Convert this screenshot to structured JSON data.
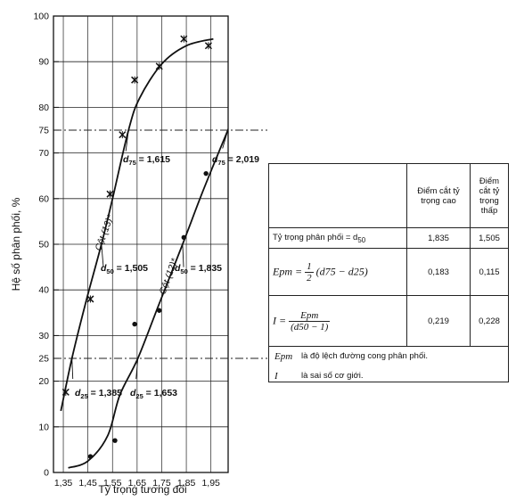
{
  "chart_data": {
    "type": "line",
    "title": "",
    "xlabel": "Tỷ trọng tương đối",
    "ylabel": "Hệ số phân phối, %",
    "xlim": [
      1.31,
      2.02
    ],
    "ylim": [
      0,
      100
    ],
    "x_ticks": [
      "1,35",
      "1,45",
      "1,55",
      "1,65",
      "1,75",
      "1,85",
      "1,95"
    ],
    "x_tick_values": [
      1.35,
      1.45,
      1.55,
      1.65,
      1.75,
      1.85,
      1.95
    ],
    "y_ticks": [
      "0",
      "10",
      "20",
      "25",
      "30",
      "40",
      "50",
      "60",
      "70",
      "75",
      "80",
      "90",
      "100"
    ],
    "y_tick_values": [
      0,
      10,
      20,
      25,
      30,
      40,
      50,
      60,
      70,
      75,
      80,
      90,
      100
    ],
    "grid": true,
    "series": [
      {
        "name": "Cột (13)*",
        "marker": "x",
        "points": [
          {
            "x": 1.36,
            "y": 17.6
          },
          {
            "x": 1.46,
            "y": 38
          },
          {
            "x": 1.54,
            "y": 61
          },
          {
            "x": 1.59,
            "y": 74
          },
          {
            "x": 1.64,
            "y": 86
          },
          {
            "x": 1.74,
            "y": 89
          },
          {
            "x": 1.84,
            "y": 95
          },
          {
            "x": 1.94,
            "y": 93.5
          }
        ],
        "curve": [
          {
            "x": 1.34,
            "y": 13.5
          },
          {
            "x": 1.385,
            "y": 25
          },
          {
            "x": 1.44,
            "y": 37
          },
          {
            "x": 1.505,
            "y": 50
          },
          {
            "x": 1.55,
            "y": 60
          },
          {
            "x": 1.615,
            "y": 75
          },
          {
            "x": 1.66,
            "y": 82
          },
          {
            "x": 1.75,
            "y": 89.5
          },
          {
            "x": 1.85,
            "y": 93.5
          },
          {
            "x": 1.96,
            "y": 95
          }
        ]
      },
      {
        "name": "Cột (12)*",
        "marker": "dot",
        "points": [
          {
            "x": 1.46,
            "y": 3.5
          },
          {
            "x": 1.56,
            "y": 7
          },
          {
            "x": 1.64,
            "y": 32.5
          },
          {
            "x": 1.74,
            "y": 35.5
          },
          {
            "x": 1.84,
            "y": 51.5
          },
          {
            "x": 1.93,
            "y": 65.5
          }
        ],
        "curve": [
          {
            "x": 1.37,
            "y": 1
          },
          {
            "x": 1.45,
            "y": 2.5
          },
          {
            "x": 1.53,
            "y": 8
          },
          {
            "x": 1.58,
            "y": 17
          },
          {
            "x": 1.653,
            "y": 25
          },
          {
            "x": 1.74,
            "y": 37
          },
          {
            "x": 1.835,
            "y": 50
          },
          {
            "x": 1.92,
            "y": 62
          },
          {
            "x": 2.019,
            "y": 75
          },
          {
            "x": 2.035,
            "y": 77
          }
        ]
      }
    ],
    "annotations": {
      "d75_left": {
        "pre": "d",
        "sub": "75",
        "post": " = 1,615",
        "x": 1.615,
        "y": 75
      },
      "d75_right": {
        "pre": "d",
        "sub": "75",
        "post": " = 2,019",
        "x": 2.019,
        "y": 75
      },
      "d50_left": {
        "pre": "d",
        "sub": "50",
        "post": " = 1,505",
        "x": 1.505,
        "y": 50
      },
      "d50_right": {
        "pre": "d",
        "sub": "50",
        "post": " = 1,835",
        "x": 1.835,
        "y": 50
      },
      "d25_left": {
        "pre": "d",
        "sub": "25",
        "post": " = 1,385",
        "x": 1.385,
        "y": 25
      },
      "d25_right": {
        "pre": "d",
        "sub": "25",
        "post": " = 1,653",
        "x": 1.653,
        "y": 25
      },
      "col13_label": "Cột (13)*",
      "col12_label": "Cột (12)*"
    }
  },
  "summary_table": {
    "header_high": "Điểm cắt tỷ trọng cao",
    "header_low": "Điểm cắt tỷ trọng thấp",
    "row1_label": "Tỷ trọng phân phối = d",
    "row1_sub": "50",
    "row1_high": "1,835",
    "row1_low": "1,505",
    "row2_high": "0,183",
    "row2_low": "0,115",
    "row3_high": "0,219",
    "row3_low": "0,228",
    "epm_lhs": "Epm =",
    "epm_num": "1",
    "epm_den": "2",
    "epm_rhs": "(d75 − d25)",
    "i_lhs": "I =",
    "i_num": "Epm",
    "i_den": "(d50 − 1)",
    "note1_sym": "Epm",
    "note1_text": "là độ lệch đường cong phân phối.",
    "note2_sym": "I",
    "note2_text": "là sai số cơ giới."
  }
}
